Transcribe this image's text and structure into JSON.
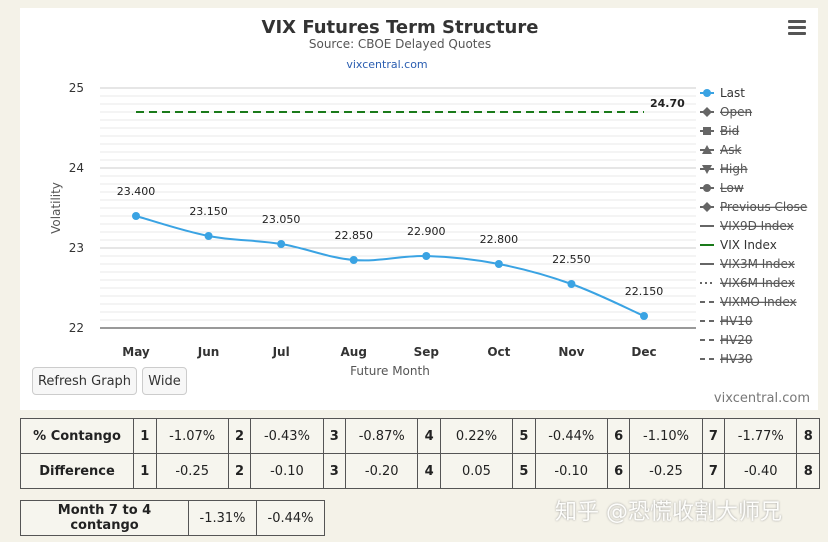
{
  "header": {
    "title": "VIX Futures Term Structure",
    "subtitle": "Source: CBOE Delayed Quotes",
    "link": "vixcentral.com"
  },
  "chart_data": {
    "type": "line",
    "title": "VIX Futures Term Structure",
    "subtitle": "Source: CBOE Delayed Quotes",
    "xlabel": "Future Month",
    "ylabel": "Volatility",
    "categories": [
      "May",
      "Jun",
      "Jul",
      "Aug",
      "Sep",
      "Oct",
      "Nov",
      "Dec"
    ],
    "ylim": [
      22,
      25
    ],
    "yticks": [
      22,
      23,
      24,
      25
    ],
    "grid": true,
    "series": [
      {
        "name": "Last",
        "values": [
          23.4,
          23.15,
          23.05,
          22.85,
          22.9,
          22.8,
          22.55,
          22.15
        ],
        "labels": [
          "23.400",
          "23.150",
          "23.050",
          "22.850",
          "22.900",
          "22.800",
          "22.550",
          "22.150"
        ],
        "color": "#3aa3e3"
      },
      {
        "name": "VIX Index",
        "values": [
          24.7,
          24.7,
          24.7,
          24.7,
          24.7,
          24.7,
          24.7,
          24.7
        ],
        "end_label": "24.70",
        "color": "#1a7a1a",
        "style": "dashed"
      }
    ],
    "legend_position": "right",
    "legend": [
      {
        "label": "Last",
        "active": true,
        "marker": "circle",
        "color": "#3aa3e3"
      },
      {
        "label": "Open",
        "active": false,
        "marker": "diamond"
      },
      {
        "label": "Bid",
        "active": false,
        "marker": "square"
      },
      {
        "label": "Ask",
        "active": false,
        "marker": "triangle"
      },
      {
        "label": "High",
        "active": false,
        "marker": "triangle-down"
      },
      {
        "label": "Low",
        "active": false,
        "marker": "circle"
      },
      {
        "label": "Previous Close",
        "active": false,
        "marker": "diamond"
      },
      {
        "label": "VIX9D Index",
        "active": false,
        "marker": "line"
      },
      {
        "label": "VIX Index",
        "active": true,
        "marker": "line",
        "color": "#1a7a1a"
      },
      {
        "label": "VIX3M Index",
        "active": false,
        "marker": "line"
      },
      {
        "label": "VIX6M Index",
        "active": false,
        "marker": "dotted"
      },
      {
        "label": "VIXMO Index",
        "active": false,
        "marker": "dashed"
      },
      {
        "label": "HV10",
        "active": false,
        "marker": "dashed"
      },
      {
        "label": "HV20",
        "active": false,
        "marker": "dashed"
      },
      {
        "label": "HV30",
        "active": false,
        "marker": "dashed"
      }
    ],
    "credit": "vixcentral.com"
  },
  "buttons": {
    "refresh": "Refresh Graph",
    "wide": "Wide"
  },
  "contango_table": {
    "row1_label": "% Contango",
    "row2_label": "Difference",
    "months": [
      "1",
      "2",
      "3",
      "4",
      "5",
      "6",
      "7",
      "8"
    ],
    "contango": [
      "-1.07%",
      "-0.43%",
      "-0.87%",
      "0.22%",
      "-0.44%",
      "-1.10%",
      "-1.77%"
    ],
    "difference": [
      "-0.25",
      "-0.10",
      "-0.20",
      "0.05",
      "-0.10",
      "-0.25",
      "-0.40"
    ]
  },
  "month_table": {
    "label": "Month 7 to 4 contango",
    "values": [
      "-1.31%",
      "-0.44%"
    ]
  },
  "watermark": "知乎 @恐慌收割大师兄"
}
